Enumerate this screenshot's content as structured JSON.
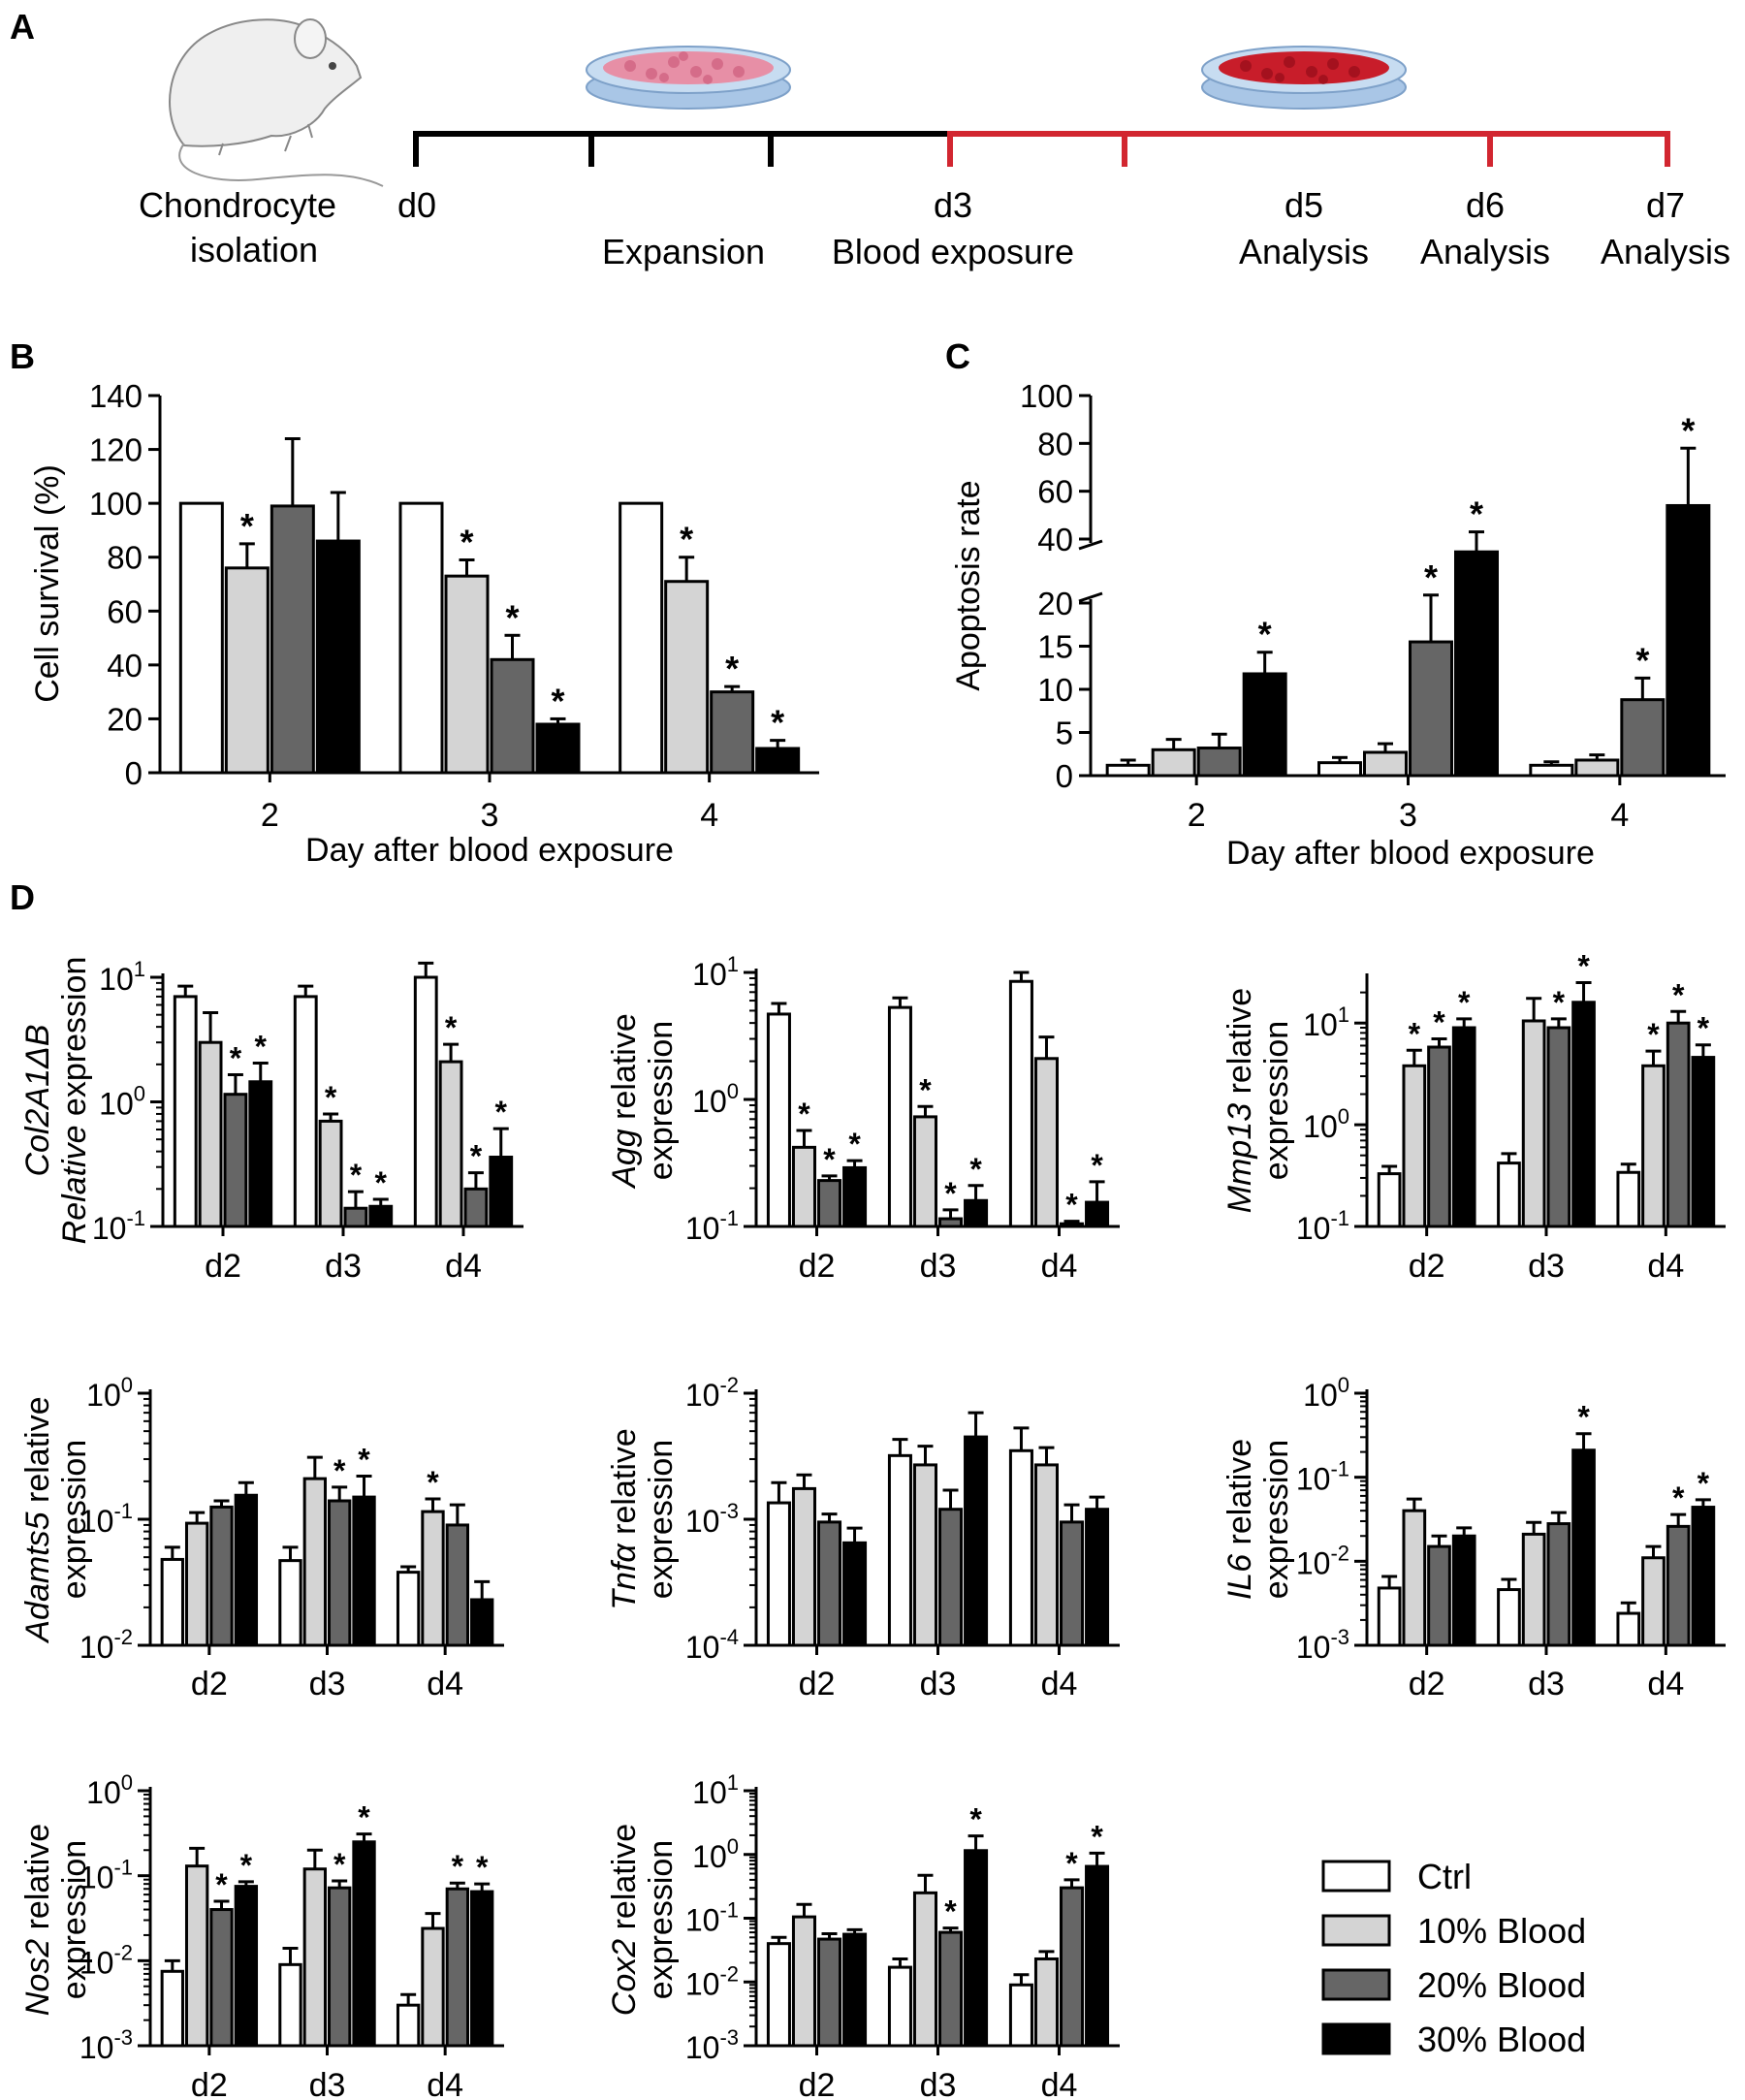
{
  "panels": {
    "A": "A",
    "B": "B",
    "C": "C",
    "D": "D"
  },
  "colors": {
    "ctrl": "#ffffff",
    "b10": "#d4d4d4",
    "b20": "#666666",
    "b30": "#000000",
    "timeline_black": "#000000",
    "timeline_red": "#d22630"
  },
  "timeline": {
    "isolation": [
      "Chondrocyte",
      "isolation"
    ],
    "days": [
      "d0",
      "d3",
      "d5",
      "d6",
      "d7"
    ],
    "labels": [
      "Expansion",
      "Blood exposure",
      "Analysis",
      "Analysis",
      "Analysis"
    ]
  },
  "legend": [
    "Ctrl",
    "10% Blood",
    "20% Blood",
    "30% Blood"
  ],
  "chart_data": [
    {
      "panel": "B",
      "type": "bar",
      "categories": [
        "2",
        "3",
        "4"
      ],
      "xlabel": "Day after blood exposure",
      "ylabel": "Cell survival (%)",
      "ylim": [
        0,
        140
      ],
      "yticks": [
        "0",
        "20",
        "40",
        "60",
        "80",
        "100",
        "120",
        "140"
      ],
      "series": [
        {
          "name": "Ctrl",
          "values": [
            100,
            100,
            100
          ],
          "err": [
            0,
            0,
            0
          ]
        },
        {
          "name": "10% Blood",
          "values": [
            76,
            73,
            71
          ],
          "err": [
            9,
            6,
            9
          ]
        },
        {
          "name": "20% Blood",
          "values": [
            99,
            42,
            30
          ],
          "err": [
            25,
            9,
            2
          ]
        },
        {
          "name": "30% Blood",
          "values": [
            86,
            18,
            9
          ],
          "err": [
            18,
            2,
            3
          ]
        }
      ],
      "stars": [
        [
          0,
          1
        ],
        [
          1,
          1
        ],
        [
          1,
          2
        ],
        [
          1,
          3
        ],
        [
          2,
          1
        ],
        [
          2,
          2
        ],
        [
          2,
          3
        ]
      ]
    },
    {
      "panel": "C",
      "type": "bar",
      "categories": [
        "2",
        "3",
        "4"
      ],
      "xlabel": "Day after blood exposure",
      "ylabel": "Apoptosis rate",
      "ylim_lower": [
        0,
        20
      ],
      "ylim_upper": [
        40,
        100
      ],
      "yticks": [
        "0",
        "5",
        "10",
        "15",
        "20",
        "40",
        "60",
        "80",
        "100"
      ],
      "series": [
        {
          "name": "Ctrl",
          "values": [
            1.2,
            1.5,
            1.2
          ],
          "err": [
            0.6,
            0.6,
            0.4
          ]
        },
        {
          "name": "10% Blood",
          "values": [
            3,
            2.7,
            1.8
          ],
          "err": [
            1.2,
            1,
            0.6
          ]
        },
        {
          "name": "20% Blood",
          "values": [
            3.2,
            15.5,
            8.8
          ],
          "err": [
            1.6,
            7,
            2.5
          ]
        },
        {
          "name": "30% Blood",
          "values": [
            11.8,
            36,
            54
          ],
          "err": [
            2.5,
            7,
            24
          ]
        }
      ],
      "stars": [
        [
          0,
          3
        ],
        [
          1,
          2
        ],
        [
          1,
          3
        ],
        [
          2,
          2
        ],
        [
          2,
          3
        ]
      ]
    },
    {
      "panel": "D1",
      "type": "bar",
      "scale": "log",
      "categories": [
        "d2",
        "d3",
        "d4"
      ],
      "ylabel_italic": "Col2A1ΔB",
      "ylabel_line2_italic": "Relative",
      "ylabel_line2_rest": " expression",
      "yexp": [
        -1,
        1
      ],
      "series": [
        {
          "name": "Ctrl",
          "values": [
            7,
            7,
            10
          ],
          "err": [
            1.5,
            1.5,
            3
          ]
        },
        {
          "name": "10% Blood",
          "values": [
            3,
            0.7,
            2.1
          ],
          "err": [
            2.2,
            0.1,
            0.8
          ]
        },
        {
          "name": "20% Blood",
          "values": [
            1.15,
            0.14,
            0.2
          ],
          "err": [
            0.5,
            0.05,
            0.07
          ]
        },
        {
          "name": "30% Blood",
          "values": [
            1.45,
            0.145,
            0.36
          ],
          "err": [
            0.6,
            0.02,
            0.25
          ]
        }
      ],
      "stars": [
        [
          0,
          2
        ],
        [
          0,
          3
        ],
        [
          1,
          1
        ],
        [
          1,
          2
        ],
        [
          1,
          3
        ],
        [
          2,
          1
        ],
        [
          2,
          2
        ],
        [
          2,
          3
        ]
      ]
    },
    {
      "panel": "D2",
      "type": "bar",
      "scale": "log",
      "categories": [
        "d2",
        "d3",
        "d4"
      ],
      "ylabel_italic": "Agg",
      "ylabel_rest": " relative",
      "ylabel_line2": "expression",
      "yexp": [
        -1,
        1
      ],
      "series": [
        {
          "name": "Ctrl",
          "values": [
            4.7,
            5.3,
            8.5
          ],
          "err": [
            1,
            1,
            1.5
          ]
        },
        {
          "name": "10% Blood",
          "values": [
            0.42,
            0.73,
            2.1
          ],
          "err": [
            0.15,
            0.15,
            1
          ]
        },
        {
          "name": "20% Blood",
          "values": [
            0.23,
            0.115,
            0.105
          ],
          "err": [
            0.02,
            0.02,
            0.005
          ]
        },
        {
          "name": "30% Blood",
          "values": [
            0.29,
            0.16,
            0.155
          ],
          "err": [
            0.04,
            0.05,
            0.07
          ]
        }
      ],
      "stars": [
        [
          0,
          1
        ],
        [
          0,
          2
        ],
        [
          0,
          3
        ],
        [
          1,
          1
        ],
        [
          1,
          2
        ],
        [
          1,
          3
        ],
        [
          2,
          2
        ],
        [
          2,
          3
        ]
      ]
    },
    {
      "panel": "D3",
      "type": "bar",
      "scale": "log",
      "categories": [
        "d2",
        "d3",
        "d4"
      ],
      "ylabel_italic": "Mmp13",
      "ylabel_rest": " relative",
      "ylabel_line2": "expression",
      "yexp": [
        -1,
        1
      ],
      "ymax_exp": 1.45,
      "series": [
        {
          "name": "Ctrl",
          "values": [
            0.33,
            0.42,
            0.34
          ],
          "err": [
            0.06,
            0.1,
            0.07
          ]
        },
        {
          "name": "10% Blood",
          "values": [
            3.8,
            10.5,
            3.8
          ],
          "err": [
            1.6,
            7,
            1.5
          ]
        },
        {
          "name": "20% Blood",
          "values": [
            5.8,
            9,
            10
          ],
          "err": [
            1.2,
            2,
            3
          ]
        },
        {
          "name": "30% Blood",
          "values": [
            9,
            16,
            4.6
          ],
          "err": [
            2,
            9,
            1.5
          ]
        }
      ],
      "stars": [
        [
          0,
          1
        ],
        [
          0,
          2
        ],
        [
          0,
          3
        ],
        [
          1,
          2
        ],
        [
          1,
          3
        ],
        [
          2,
          1
        ],
        [
          2,
          2
        ],
        [
          2,
          3
        ]
      ]
    },
    {
      "panel": "D4",
      "type": "bar",
      "scale": "log",
      "categories": [
        "d2",
        "d3",
        "d4"
      ],
      "ylabel_italic": "Adamts5",
      "ylabel_rest": " relative",
      "ylabel_line2": "expression",
      "yexp": [
        -2,
        0
      ],
      "series": [
        {
          "name": "Ctrl",
          "values": [
            0.048,
            0.047,
            0.038
          ],
          "err": [
            0.012,
            0.013,
            0.004
          ]
        },
        {
          "name": "10% Blood",
          "values": [
            0.093,
            0.21,
            0.115
          ],
          "err": [
            0.02,
            0.1,
            0.03
          ]
        },
        {
          "name": "20% Blood",
          "values": [
            0.125,
            0.14,
            0.09
          ],
          "err": [
            0.015,
            0.04,
            0.04
          ]
        },
        {
          "name": "30% Blood",
          "values": [
            0.155,
            0.15,
            0.023
          ],
          "err": [
            0.04,
            0.07,
            0.009
          ]
        }
      ],
      "stars": [
        [
          1,
          2
        ],
        [
          1,
          3
        ],
        [
          2,
          1
        ]
      ]
    },
    {
      "panel": "D5",
      "type": "bar",
      "scale": "log",
      "categories": [
        "d2",
        "d3",
        "d4"
      ],
      "ylabel_italic": "Tnfα",
      "ylabel_rest": " relative",
      "ylabel_line2": "expression",
      "yexp": [
        -4,
        -2
      ],
      "series": [
        {
          "name": "Ctrl",
          "values": [
            0.00135,
            0.0032,
            0.0035
          ],
          "err": [
            0.0006,
            0.0011,
            0.0018
          ]
        },
        {
          "name": "10% Blood",
          "values": [
            0.00175,
            0.0027,
            0.0027
          ],
          "err": [
            0.0005,
            0.0011,
            0.001
          ]
        },
        {
          "name": "20% Blood",
          "values": [
            0.00095,
            0.0012,
            0.00095
          ],
          "err": [
            0.00015,
            0.0005,
            0.00035
          ]
        },
        {
          "name": "30% Blood",
          "values": [
            0.00065,
            0.0045,
            0.0012
          ],
          "err": [
            0.0002,
            0.0025,
            0.0003
          ]
        }
      ],
      "stars": []
    },
    {
      "panel": "D6",
      "type": "bar",
      "scale": "log",
      "categories": [
        "d2",
        "d3",
        "d4"
      ],
      "ylabel_italic": "IL6",
      "ylabel_rest": " relative",
      "ylabel_line2": "expression",
      "yexp": [
        -3,
        0
      ],
      "series": [
        {
          "name": "Ctrl",
          "values": [
            0.0048,
            0.0046,
            0.0024
          ],
          "err": [
            0.0018,
            0.0015,
            0.0008
          ]
        },
        {
          "name": "10% Blood",
          "values": [
            0.04,
            0.021,
            0.011
          ],
          "err": [
            0.015,
            0.008,
            0.004
          ]
        },
        {
          "name": "20% Blood",
          "values": [
            0.015,
            0.028,
            0.026
          ],
          "err": [
            0.005,
            0.01,
            0.01
          ]
        },
        {
          "name": "30% Blood",
          "values": [
            0.02,
            0.21,
            0.044
          ],
          "err": [
            0.005,
            0.12,
            0.01
          ]
        }
      ],
      "stars": [
        [
          1,
          3
        ],
        [
          2,
          2
        ],
        [
          2,
          3
        ]
      ]
    },
    {
      "panel": "D7",
      "type": "bar",
      "scale": "log",
      "categories": [
        "d2",
        "d3",
        "d4"
      ],
      "ylabel_italic": "Nos2",
      "ylabel_rest": " relative",
      "ylabel_line2": "expression",
      "yexp": [
        -3,
        0
      ],
      "series": [
        {
          "name": "Ctrl",
          "values": [
            0.0075,
            0.009,
            0.003
          ],
          "err": [
            0.0025,
            0.005,
            0.001
          ]
        },
        {
          "name": "10% Blood",
          "values": [
            0.13,
            0.12,
            0.024
          ],
          "err": [
            0.08,
            0.08,
            0.012
          ]
        },
        {
          "name": "20% Blood",
          "values": [
            0.04,
            0.072,
            0.07
          ],
          "err": [
            0.01,
            0.015,
            0.012
          ]
        },
        {
          "name": "30% Blood",
          "values": [
            0.075,
            0.25,
            0.065
          ],
          "err": [
            0.01,
            0.06,
            0.015
          ]
        }
      ],
      "stars": [
        [
          0,
          2
        ],
        [
          0,
          3
        ],
        [
          1,
          2
        ],
        [
          1,
          3
        ],
        [
          2,
          2
        ],
        [
          2,
          3
        ]
      ]
    },
    {
      "panel": "D8",
      "type": "bar",
      "scale": "log",
      "categories": [
        "d2",
        "d3",
        "d4"
      ],
      "ylabel_italic": "Cox2",
      "ylabel_rest": " relative",
      "ylabel_line2": "expression",
      "yexp": [
        -3,
        1
      ],
      "series": [
        {
          "name": "Ctrl",
          "values": [
            0.04,
            0.017,
            0.009
          ],
          "err": [
            0.01,
            0.006,
            0.004
          ]
        },
        {
          "name": "10% Blood",
          "values": [
            0.105,
            0.25,
            0.023
          ],
          "err": [
            0.06,
            0.22,
            0.007
          ]
        },
        {
          "name": "20% Blood",
          "values": [
            0.047,
            0.06,
            0.3
          ],
          "err": [
            0.01,
            0.01,
            0.1
          ]
        },
        {
          "name": "30% Blood",
          "values": [
            0.056,
            1.15,
            0.65
          ],
          "err": [
            0.01,
            0.8,
            0.4
          ]
        }
      ],
      "stars": [
        [
          1,
          2
        ],
        [
          1,
          3
        ],
        [
          2,
          2
        ],
        [
          2,
          3
        ]
      ]
    }
  ]
}
